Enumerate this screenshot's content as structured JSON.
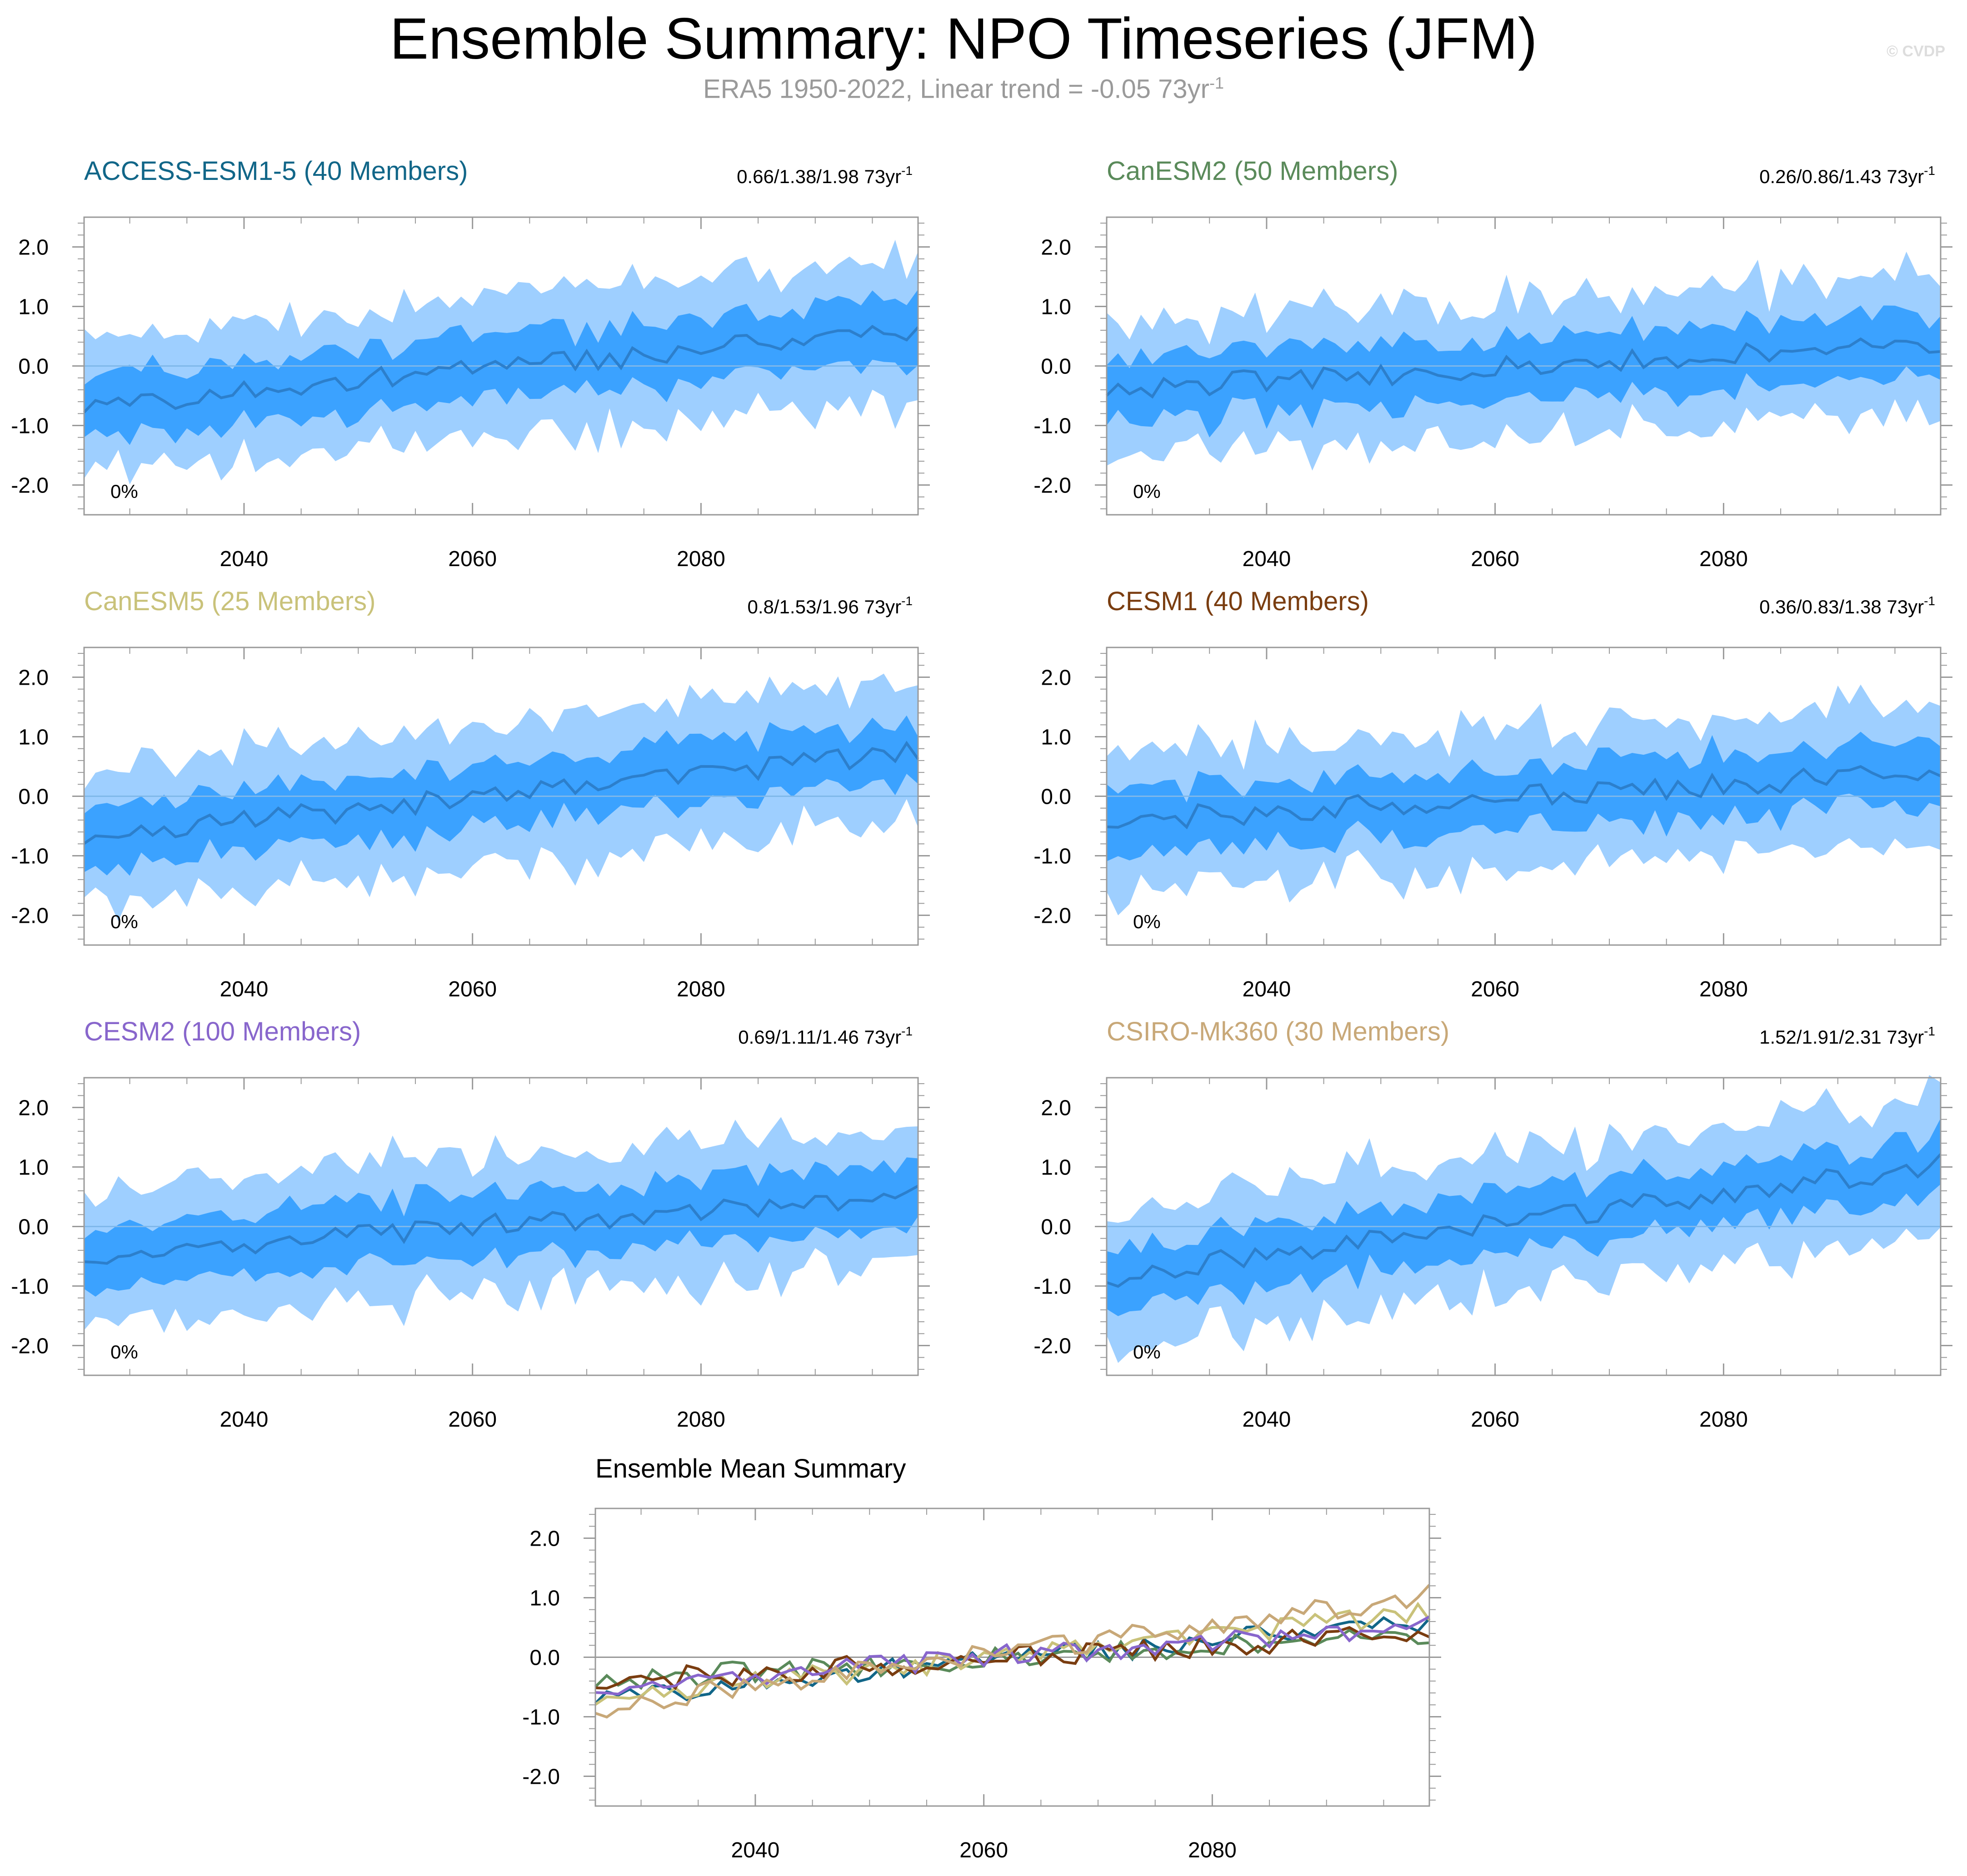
{
  "header": {
    "title": "Ensemble Summary: NPO Timeseries (JFM)",
    "subtitle_main": "ERA5 1950-2022, Linear trend = -0.05 73yr",
    "subtitle_exp": "-1",
    "watermark": "© CVDP"
  },
  "colors": {
    "outer_band": "#9ecfff",
    "inner_band": "#3ba2ff",
    "mean_line": "#2c7fcc"
  },
  "chart_data": [
    {
      "type": "area",
      "title": "ACCESS-ESM1-5 (40 Members)",
      "title_color": "#116688",
      "trend_text": "0.66/1.38/1.98 73yr",
      "trend_exp": "-1",
      "pct_label": "0%",
      "xlim": [
        2026,
        2099
      ],
      "ylim": [
        -2.5,
        2.5
      ],
      "xticks": [
        2040,
        2060,
        2080
      ],
      "yticks": [
        2.0,
        1.0,
        0.0,
        -1.0,
        -2.0
      ],
      "ytick_labels": [
        "2.0",
        "1.0",
        "0.0",
        "-1.0",
        "-2.0"
      ],
      "start_mean": -0.68,
      "end_mean": 0.62,
      "seed": 11
    },
    {
      "type": "area",
      "title": "CanESM2 (50 Members)",
      "title_color": "#5a8a5a",
      "trend_text": "0.26/0.86/1.43 73yr",
      "trend_exp": "-1",
      "pct_label": "0%",
      "xlim": [
        2026,
        2099
      ],
      "ylim": [
        -2.5,
        2.5
      ],
      "xticks": [
        2040,
        2060,
        2080
      ],
      "yticks": [
        2.0,
        1.0,
        0.0,
        -1.0,
        -2.0
      ],
      "ytick_labels": [
        "2.0",
        "1.0",
        "0.0",
        "-1.0",
        "-2.0"
      ],
      "start_mean": -0.4,
      "end_mean": 0.4,
      "seed": 23
    },
    {
      "type": "area",
      "title": "CanESM5 (25 Members)",
      "title_color": "#c9c27a",
      "trend_text": "0.8/1.53/1.96 73yr",
      "trend_exp": "-1",
      "pct_label": "0%",
      "xlim": [
        2026,
        2099
      ],
      "ylim": [
        -2.5,
        2.5
      ],
      "xticks": [
        2040,
        2060,
        2080
      ],
      "yticks": [
        2.0,
        1.0,
        0.0,
        -1.0,
        -2.0
      ],
      "ytick_labels": [
        "2.0",
        "1.0",
        "0.0",
        "-1.0",
        "-2.0"
      ],
      "start_mean": -0.7,
      "end_mean": 0.75,
      "seed": 37
    },
    {
      "type": "area",
      "title": "CESM1 (40 Members)",
      "title_color": "#7a3d10",
      "trend_text": "0.36/0.83/1.38 73yr",
      "trend_exp": "-1",
      "pct_label": "0%",
      "xlim": [
        2026,
        2099
      ],
      "ylim": [
        -2.5,
        2.5
      ],
      "xticks": [
        2040,
        2060,
        2080
      ],
      "yticks": [
        2.0,
        1.0,
        0.0,
        -1.0,
        -2.0
      ],
      "ytick_labels": [
        "2.0",
        "1.0",
        "0.0",
        "-1.0",
        "-2.0"
      ],
      "start_mean": -0.42,
      "end_mean": 0.4,
      "seed": 41
    },
    {
      "type": "area",
      "title": "CESM2 (100 Members)",
      "title_color": "#8866cc",
      "trend_text": "0.69/1.11/1.46 73yr",
      "trend_exp": "-1",
      "pct_label": "0%",
      "xlim": [
        2026,
        2099
      ],
      "ylim": [
        -2.5,
        2.5
      ],
      "xticks": [
        2040,
        2060,
        2080
      ],
      "yticks": [
        2.0,
        1.0,
        0.0,
        -1.0,
        -2.0
      ],
      "ytick_labels": [
        "2.0",
        "1.0",
        "0.0",
        "-1.0",
        "-2.0"
      ],
      "start_mean": -0.5,
      "end_mean": 0.55,
      "seed": 53
    },
    {
      "type": "area",
      "title": "CSIRO-Mk360 (30 Members)",
      "title_color": "#c8a878",
      "trend_text": "1.52/1.91/2.31 73yr",
      "trend_exp": "-1",
      "pct_label": "0%",
      "xlim": [
        2026,
        2099
      ],
      "ylim": [
        -2.5,
        2.5
      ],
      "xticks": [
        2040,
        2060,
        2080
      ],
      "yticks": [
        2.0,
        1.0,
        0.0,
        -1.0,
        -2.0
      ],
      "ytick_labels": [
        "2.0",
        "1.0",
        "0.0",
        "-1.0",
        "-2.0"
      ],
      "start_mean": -0.85,
      "end_mean": 1.05,
      "seed": 67
    },
    {
      "type": "line",
      "title": "Ensemble Mean Summary",
      "xlim": [
        2026,
        2099
      ],
      "ylim": [
        -2.5,
        2.5
      ],
      "xticks": [
        2040,
        2060,
        2080
      ],
      "yticks": [
        2.0,
        1.0,
        0.0,
        -1.0,
        -2.0
      ],
      "ytick_labels": [
        "2.0",
        "1.0",
        "0.0",
        "-1.0",
        "-2.0"
      ],
      "series": [
        {
          "name": "ACCESS-ESM1-5",
          "color": "#116688"
        },
        {
          "name": "CanESM2",
          "color": "#5a8a5a"
        },
        {
          "name": "CanESM5",
          "color": "#c9c27a"
        },
        {
          "name": "CESM1",
          "color": "#7a3d10"
        },
        {
          "name": "CESM2",
          "color": "#8866cc"
        },
        {
          "name": "CSIRO-Mk360",
          "color": "#c8a878"
        }
      ]
    }
  ]
}
